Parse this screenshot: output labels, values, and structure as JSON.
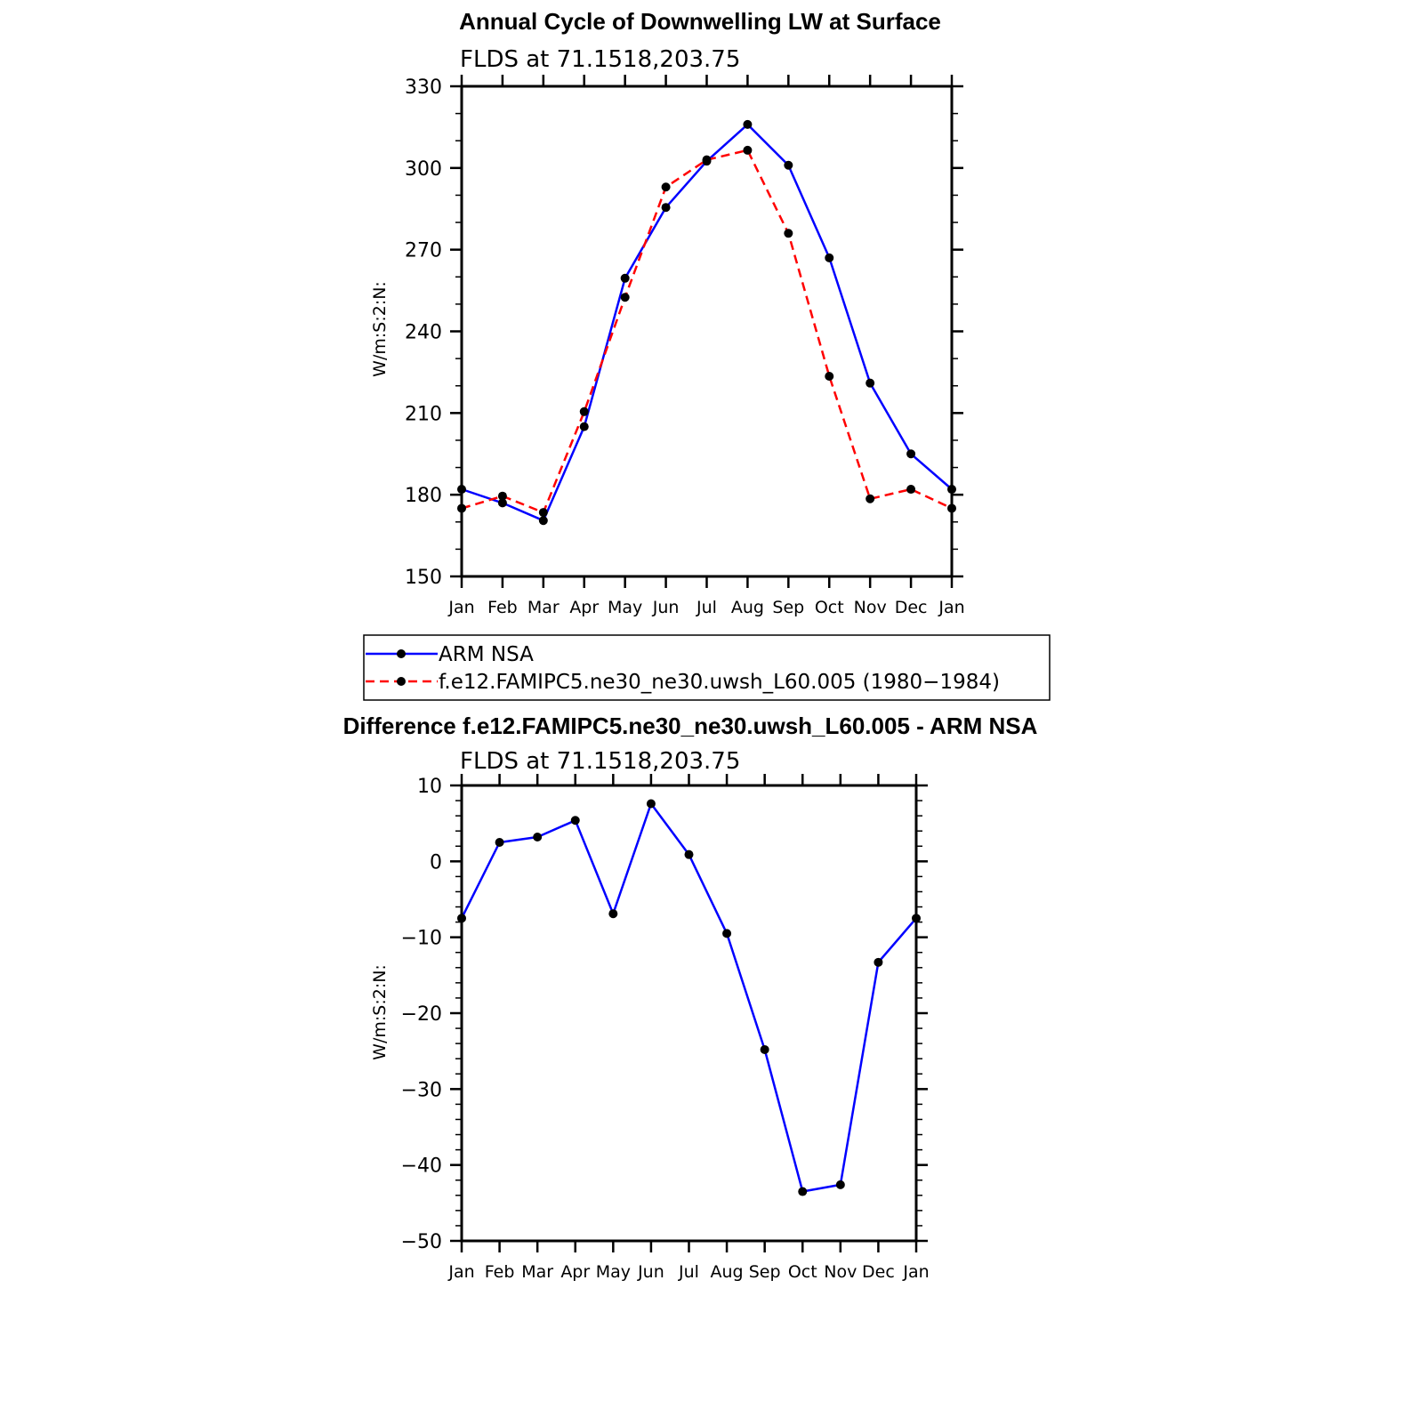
{
  "chart_data": [
    {
      "type": "line",
      "title": "Annual Cycle of Downwelling LW at Surface",
      "subtitle": "FLDS at 71.1518,203.75",
      "ylabel": "W/m:S:2:N:",
      "xlabel": "",
      "categories": [
        "Jan",
        "Feb",
        "Mar",
        "Apr",
        "May",
        "Jun",
        "Jul",
        "Aug",
        "Sep",
        "Oct",
        "Nov",
        "Dec",
        "Jan"
      ],
      "ylim": [
        150,
        330
      ],
      "yticks": [
        150,
        180,
        210,
        240,
        270,
        300,
        330
      ],
      "yminor_step": 10,
      "grid": false,
      "legend": "bottom",
      "series": [
        {
          "name": "ARM NSA",
          "color": "#0000ff",
          "dash": "solid",
          "values": [
            182,
            177,
            170.5,
            205,
            259.5,
            285.5,
            302.5,
            316,
            301,
            267,
            221,
            195,
            182
          ]
        },
        {
          "name": "f.e12.FAMIPC5.ne30_ne30.uwsh_L60.005 (1980−1984)",
          "color": "#ff0000",
          "dash": "dashed",
          "values": [
            175,
            179.5,
            173.5,
            210.5,
            252.5,
            293,
            303,
            306.5,
            276,
            223.5,
            178.5,
            182,
            175
          ]
        }
      ]
    },
    {
      "type": "line",
      "title": "Difference f.e12.FAMIPC5.ne30_ne30.uwsh_L60.005 - ARM NSA",
      "subtitle": "FLDS at 71.1518,203.75",
      "ylabel": "W/m:S:2:N:",
      "xlabel": "",
      "categories": [
        "Jan",
        "Feb",
        "Mar",
        "Apr",
        "May",
        "Jun",
        "Jul",
        "Aug",
        "Sep",
        "Oct",
        "Nov",
        "Dec",
        "Jan"
      ],
      "ylim": [
        -50,
        10
      ],
      "yticks": [
        -50,
        -40,
        -30,
        -20,
        -10,
        0,
        10
      ],
      "ytick_labels": [
        "−50",
        "−40",
        "−30",
        "−20",
        "−10",
        "0",
        "10"
      ],
      "yminor_step": 2,
      "grid": false,
      "series": [
        {
          "color": "#0000ff",
          "dash": "solid",
          "values": [
            -7.5,
            2.5,
            3.2,
            5.4,
            -6.9,
            7.6,
            0.9,
            -9.5,
            -24.8,
            -43.5,
            -42.6,
            -13.3,
            -7.5
          ]
        }
      ]
    }
  ]
}
